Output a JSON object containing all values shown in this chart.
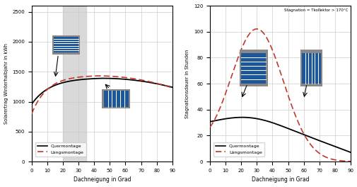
{
  "xlabel": "Dachneigung in Grad",
  "left_ylabel": "Solarertrag Winterhalbjahr in kWh",
  "right_ylabel": "Stagnationsdauer in Stunden",
  "left_ylim": [
    0,
    2600
  ],
  "right_ylim": [
    0,
    120
  ],
  "left_yticks": [
    0,
    500,
    1000,
    1500,
    2000,
    2500
  ],
  "right_yticks": [
    0,
    20,
    40,
    60,
    80,
    100,
    120
  ],
  "xticks": [
    0,
    10,
    20,
    30,
    40,
    50,
    60,
    70,
    80,
    90
  ],
  "shaded_region": [
    20,
    35
  ],
  "legend_labels": [
    "Quermontage",
    "Längsmontage"
  ],
  "line_black": "#000000",
  "line_red": "#c0392b",
  "annotation_right": "Stagnation = Tkollektor > 170°C",
  "background_color": "#ffffff",
  "grid_color": "#cccccc",
  "panel_gray": "#888888",
  "panel_blue": "#1e5799",
  "panel_stripe": "#ffffff"
}
